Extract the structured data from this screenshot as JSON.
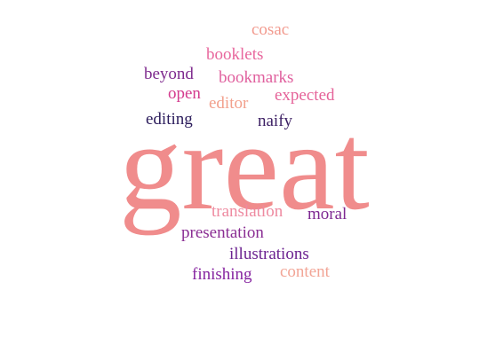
{
  "words": [
    {
      "key": "great",
      "text": "great",
      "color": "#f08c8c"
    },
    {
      "key": "cosac",
      "text": "cosac",
      "color": "#f29a8e"
    },
    {
      "key": "booklets",
      "text": "booklets",
      "color": "#e8679d"
    },
    {
      "key": "beyond",
      "text": "beyond",
      "color": "#7e2a8e"
    },
    {
      "key": "bookmarks",
      "text": "bookmarks",
      "color": "#e0609e"
    },
    {
      "key": "open",
      "text": "open",
      "color": "#d43b8e"
    },
    {
      "key": "expected",
      "text": "expected",
      "color": "#e56399"
    },
    {
      "key": "editor",
      "text": "editor",
      "color": "#f2a08c"
    },
    {
      "key": "editing",
      "text": "editing",
      "color": "#2c1d5c"
    },
    {
      "key": "naify",
      "text": "naify",
      "color": "#3b1e63"
    },
    {
      "key": "translation",
      "text": "translation",
      "color": "#ee8aa0"
    },
    {
      "key": "moral",
      "text": "moral",
      "color": "#7d2791"
    },
    {
      "key": "presentation",
      "text": "presentation",
      "color": "#8a2d93"
    },
    {
      "key": "illustrations",
      "text": "illustrations",
      "color": "#6b2290"
    },
    {
      "key": "finishing",
      "text": "finishing",
      "color": "#8624a0"
    },
    {
      "key": "content",
      "text": "content",
      "color": "#f2a596"
    }
  ]
}
